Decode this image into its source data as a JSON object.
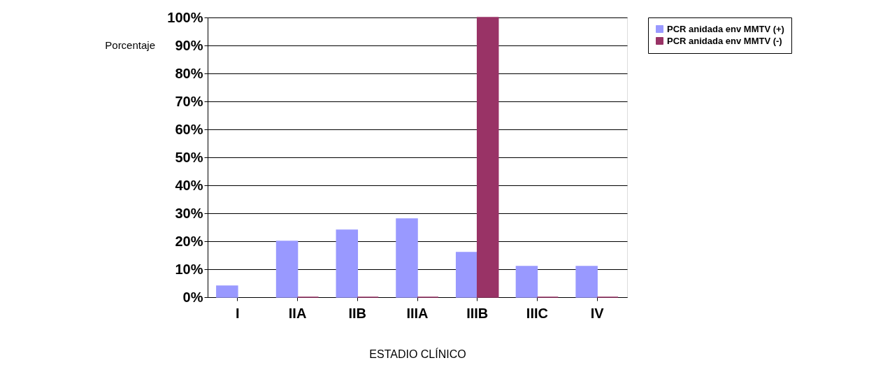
{
  "chart_data": {
    "type": "bar",
    "xlabel": "ESTADIO CLÍNICO",
    "ylabel": "Porcentaje",
    "categories": [
      "I",
      "IIA",
      "IIB",
      "IIIA",
      "IIIB",
      "IIIC",
      "IV"
    ],
    "series": [
      {
        "name": "PCR anidada env MMTV (+)",
        "color": "#9999ff",
        "values": [
          4,
          20,
          24,
          28,
          16,
          11,
          11
        ]
      },
      {
        "name": "PCR anidada env MMTV (-)",
        "color": "#993366",
        "values": [
          null,
          0,
          0,
          0,
          100,
          0,
          0
        ]
      }
    ],
    "ylim": [
      0,
      100
    ],
    "yticks": [
      {
        "value": 0,
        "label": "0%"
      },
      {
        "value": 10,
        "label": "10%"
      },
      {
        "value": 20,
        "label": "20%"
      },
      {
        "value": 30,
        "label": "30%"
      },
      {
        "value": 40,
        "label": "40%"
      },
      {
        "value": 50,
        "label": "50%"
      },
      {
        "value": 60,
        "label": "60%"
      },
      {
        "value": 70,
        "label": "70%"
      },
      {
        "value": 80,
        "label": "80%"
      },
      {
        "value": 90,
        "label": "90%"
      },
      {
        "value": 100,
        "label": "100%"
      }
    ],
    "grid": "y",
    "legend": "right"
  }
}
